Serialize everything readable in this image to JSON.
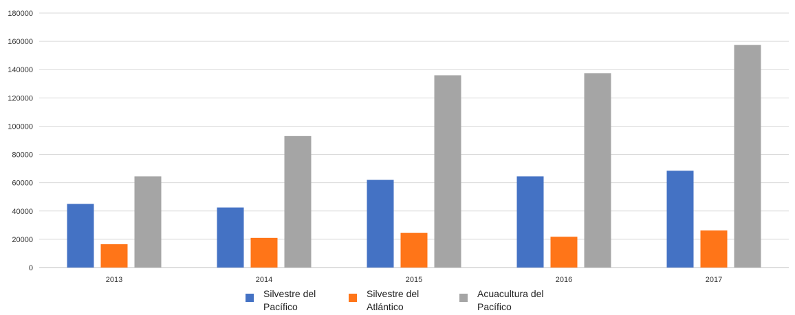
{
  "chart_data": {
    "type": "bar",
    "categories": [
      "2013",
      "2014",
      "2015",
      "2016",
      "2017"
    ],
    "series": [
      {
        "name": "Silvestre del Pacífico",
        "color": "#4472C4",
        "values": [
          45000,
          42500,
          62000,
          64500,
          68500
        ]
      },
      {
        "name": "Silvestre del Atlántico",
        "color": "#FF7518",
        "values": [
          16500,
          21000,
          24500,
          21800,
          26200
        ]
      },
      {
        "name": "Acuacultura del Pacífico",
        "color": "#A5A5A5",
        "values": [
          64500,
          93000,
          136000,
          137500,
          157500
        ]
      }
    ],
    "y_ticks": [
      "0",
      "20000",
      "40000",
      "60000",
      "80000",
      "100000",
      "120000",
      "140000",
      "160000",
      "180000"
    ],
    "ylim": [
      0,
      180000
    ],
    "title": "",
    "xlabel": "",
    "ylabel": "",
    "grid": true,
    "legend_position": "bottom"
  },
  "legend": {
    "items": [
      {
        "line1": "Silvestre del",
        "line2": "Pacífico",
        "color": "#4472C4"
      },
      {
        "line1": "Silvestre del",
        "line2": "Atlántico",
        "color": "#FF7518"
      },
      {
        "line1": "Acuacultura del",
        "line2": "Pacífico",
        "color": "#A5A5A5"
      }
    ]
  }
}
